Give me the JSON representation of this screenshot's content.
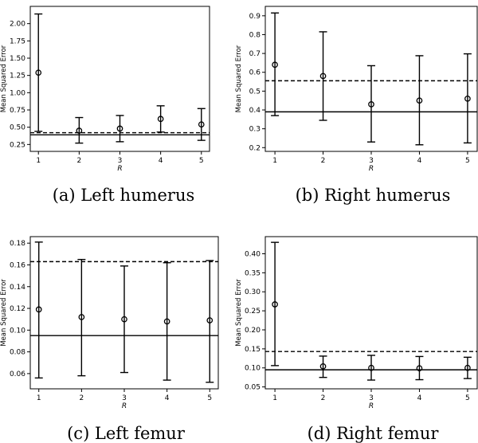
{
  "chart_data": [
    {
      "type": "scatter",
      "caption": "(a) Left humerus",
      "xlabel": "R",
      "ylabel": "Mean Squared Error",
      "x": [
        1,
        2,
        3,
        4,
        5
      ],
      "xticks": [
        "1",
        "2",
        "3",
        "4",
        "5"
      ],
      "ylim": [
        0.15,
        2.25
      ],
      "yticks": [
        "0.25",
        "0.50",
        "0.75",
        "1.00",
        "1.25",
        "1.50",
        "1.75",
        "2.00"
      ],
      "series": [
        {
          "values": [
            1.29,
            0.45,
            0.48,
            0.62,
            0.54
          ],
          "lower": [
            0.44,
            0.27,
            0.29,
            0.43,
            0.31
          ],
          "upper": [
            2.14,
            0.64,
            0.67,
            0.81,
            0.77
          ]
        }
      ],
      "hlines": [
        {
          "y": 0.42,
          "style": "dashed"
        },
        {
          "y": 0.39,
          "style": "solid"
        }
      ]
    },
    {
      "type": "scatter",
      "caption": "(b) Right humerus",
      "xlabel": "R",
      "ylabel": "Mean Squared Error",
      "x": [
        1,
        2,
        3,
        4,
        5
      ],
      "xticks": [
        "1",
        "2",
        "3",
        "4",
        "5"
      ],
      "ylim": [
        0.18,
        0.95
      ],
      "yticks": [
        "0.2",
        "0.3",
        "0.4",
        "0.5",
        "0.6",
        "0.7",
        "0.8",
        "0.9"
      ],
      "series": [
        {
          "values": [
            0.64,
            0.58,
            0.43,
            0.45,
            0.46
          ],
          "lower": [
            0.37,
            0.345,
            0.23,
            0.215,
            0.225
          ],
          "upper": [
            0.915,
            0.815,
            0.635,
            0.688,
            0.698
          ]
        }
      ],
      "hlines": [
        {
          "y": 0.555,
          "style": "dashed"
        },
        {
          "y": 0.39,
          "style": "solid"
        }
      ]
    },
    {
      "type": "scatter",
      "caption": "(c) Left femur",
      "xlabel": "R",
      "ylabel": "Mean Squared Error",
      "x": [
        1,
        2,
        3,
        4,
        5
      ],
      "xticks": [
        "1",
        "2",
        "3",
        "4",
        "5"
      ],
      "ylim": [
        0.046,
        0.186
      ],
      "yticks": [
        "0.06",
        "0.08",
        "0.10",
        "0.12",
        "0.14",
        "0.16",
        "0.18"
      ],
      "series": [
        {
          "values": [
            0.119,
            0.112,
            0.11,
            0.108,
            0.109
          ],
          "lower": [
            0.056,
            0.058,
            0.061,
            0.054,
            0.052
          ],
          "upper": [
            0.181,
            0.165,
            0.159,
            0.162,
            0.164
          ]
        }
      ],
      "hlines": [
        {
          "y": 0.163,
          "style": "dashed"
        },
        {
          "y": 0.095,
          "style": "solid"
        }
      ]
    },
    {
      "type": "scatter",
      "caption": "(d) Right femur",
      "xlabel": "R",
      "ylabel": "Mean Squared Error",
      "x": [
        1,
        2,
        3,
        4,
        5
      ],
      "xticks": [
        "1",
        "2",
        "3",
        "4",
        "5"
      ],
      "ylim": [
        0.045,
        0.445
      ],
      "yticks": [
        "0.05",
        "0.10",
        "0.15",
        "0.20",
        "0.25",
        "0.30",
        "0.35",
        "0.40"
      ],
      "series": [
        {
          "values": [
            0.267,
            0.104,
            0.1,
            0.099,
            0.1
          ],
          "lower": [
            0.106,
            0.075,
            0.068,
            0.069,
            0.072
          ],
          "upper": [
            0.43,
            0.131,
            0.133,
            0.13,
            0.128
          ]
        }
      ],
      "hlines": [
        {
          "y": 0.143,
          "style": "dashed"
        },
        {
          "y": 0.095,
          "style": "solid"
        }
      ]
    }
  ]
}
